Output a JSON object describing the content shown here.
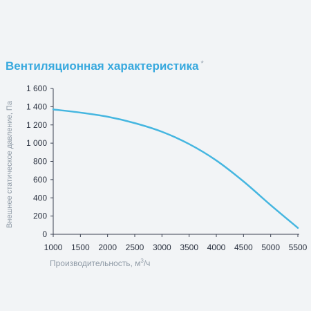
{
  "title": "Вентиляционная характеристика",
  "title_mark": "*",
  "chart_data": {
    "type": "line",
    "title": "Вентиляционная характеристика",
    "xlabel": "Производительность, м",
    "xlabel_sup": "3",
    "xlabel_suffix": "/ч",
    "ylabel": "Внешнее статическое давление, Па",
    "xlim": [
      1000,
      5500
    ],
    "ylim": [
      0,
      1600
    ],
    "x_ticks": [
      1000,
      1500,
      2000,
      2500,
      3000,
      3500,
      4000,
      4500,
      5000,
      5500
    ],
    "x_tick_labels": [
      "1000",
      "1500",
      "2000",
      "2500",
      "3000",
      "3500",
      "4000",
      "4500",
      "5000",
      "5500"
    ],
    "y_ticks": [
      0,
      200,
      400,
      600,
      800,
      1000,
      1200,
      1400,
      1600
    ],
    "y_tick_labels": [
      "0",
      "200",
      "400",
      "600",
      "800",
      "1 000",
      "1 200",
      "1 400",
      "1 600"
    ],
    "grid": false,
    "line_color": "#45b6e0",
    "series": [
      {
        "x": [
          1000,
          1500,
          2000,
          2500,
          3000,
          3500,
          4000,
          4500,
          5000,
          5500
        ],
        "y": [
          1370,
          1335,
          1290,
          1220,
          1125,
          990,
          810,
          580,
          320,
          70
        ]
      }
    ]
  }
}
